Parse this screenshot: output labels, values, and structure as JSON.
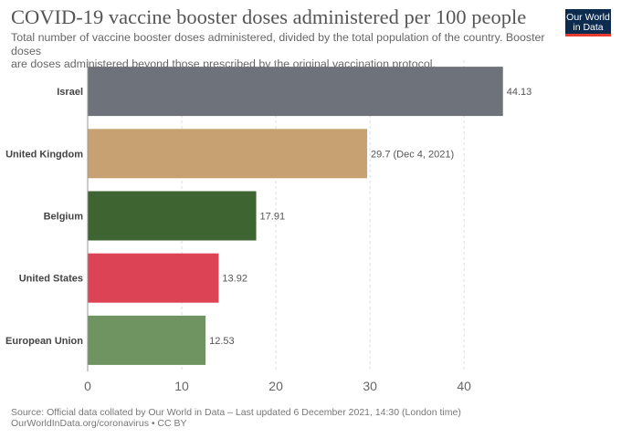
{
  "header": {
    "title": "COVID-19 vaccine booster doses administered per 100 people",
    "subtitle_line1": "Total number of vaccine booster doses administered, divided by the total population of the country. Booster doses",
    "subtitle_line2": "are doses administered beyond those prescribed by the original vaccination protocol."
  },
  "logo": {
    "line1": "Our World",
    "line2": "in Data",
    "colors": {
      "background": "#0d2a4f",
      "accent": "#e63b2e"
    }
  },
  "footer": {
    "source": "Source: Official data collated by Our World in Data – Last updated 6 December 2021, 14:30 (London time)",
    "link": "OurWorldInData.org/coronavirus • CC BY"
  },
  "chart_data": {
    "type": "bar",
    "orientation": "horizontal",
    "categories": [
      "Israel",
      "United Kingdom",
      "Belgium",
      "United States",
      "European Union"
    ],
    "values": [
      44.13,
      29.7,
      17.91,
      13.92,
      12.53
    ],
    "value_labels": [
      "44.13",
      "29.7 (Dec 4, 2021)",
      "17.91",
      "13.92",
      "12.53"
    ],
    "colors": [
      "#6e737b",
      "#c8a173",
      "#3e6431",
      "#dc4354",
      "#6f9461"
    ],
    "xlim": [
      0,
      46
    ],
    "xticks": [
      0,
      10,
      20,
      30,
      40
    ],
    "grid": true
  }
}
